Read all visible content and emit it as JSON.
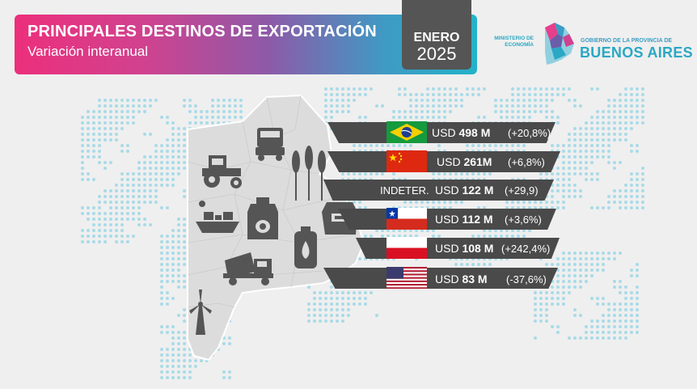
{
  "header": {
    "title": "PRINCIPALES DESTINOS DE EXPORTACIÓN",
    "subtitle": "Variación interanual",
    "month": "ENERO",
    "year": "2025"
  },
  "logos": {
    "ministry_line1": "MINISTERIO DE",
    "ministry_line2": "ECONOMÍA",
    "government": "GOBIERNO DE LA PROVINCIA DE",
    "province": "BUENOS AIRES"
  },
  "colors": {
    "banner_start": "#ec2f7c",
    "banner_end": "#22b3c9",
    "band": "#4a4a4a",
    "accent": "#2aa8c4"
  },
  "destinations": [
    {
      "flag": "brazil-flag",
      "value_prefix": "USD",
      "value": "498 M",
      "variation": "(+20,8%)"
    },
    {
      "flag": "china-flag",
      "value_prefix": "USD",
      "value": "261M",
      "variation": "(+6,8%)"
    },
    {
      "flag": "indeterminate",
      "label": "INDETER.",
      "value_prefix": "USD",
      "value": "122 M",
      "variation": "(+29,9)"
    },
    {
      "flag": "chile-flag",
      "value_prefix": "USD",
      "value": "112 M",
      "variation": "(+3,6%)"
    },
    {
      "flag": "peru-flag",
      "value_prefix": "USD",
      "value": "108 M",
      "variation": "(+242,4%)"
    },
    {
      "flag": "usa-flag",
      "value_prefix": "USD",
      "value": "83 M",
      "variation": "(-37,6%)"
    }
  ],
  "icons": [
    "truck-icon",
    "tractor-icon",
    "wheat-icon",
    "ship-icon",
    "milk-icon",
    "sack-icon",
    "gas-cylinder-icon",
    "cement-mixer-icon",
    "wind-turbine-icon"
  ]
}
